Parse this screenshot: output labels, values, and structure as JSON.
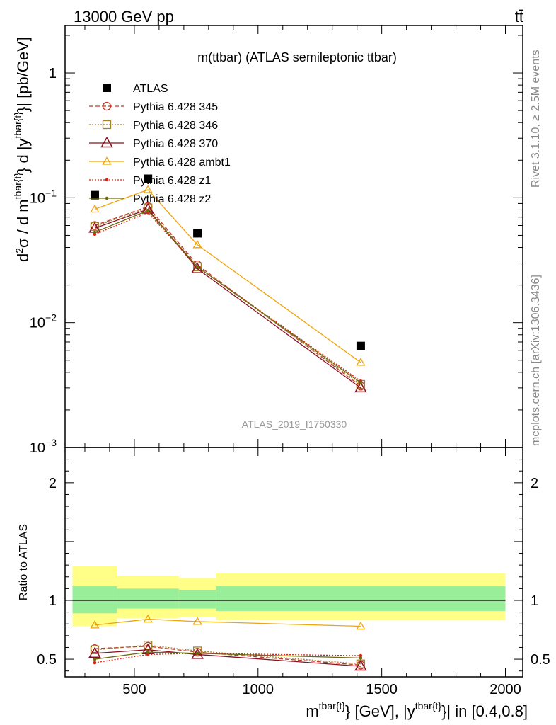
{
  "header": {
    "left": "13000 GeV pp",
    "right": "tt̄"
  },
  "side_labels": {
    "rivet": "Rivet 3.1.10, ≥ 2.5M events",
    "mcplots": "mcplots.cern.ch [arXiv:1306.3436]"
  },
  "chart_data": {
    "type": "line",
    "title": "m(ttbar) (ATLAS semileptonic ttbar)",
    "watermark": "ATLAS_2019_I1750330",
    "ylabel": "d²σ / d m^{tbar{t}} d |y^{tbar{t}}| [pb/GeV]",
    "ratio_ylabel": "Ratio to ATLAS",
    "xlabel": "m^{tbar{t}} [GeV], |y^{tbar{t}}| in [0.4,0.8]",
    "xlim": [
      220,
      2070
    ],
    "ylim_log": [
      0.001,
      2.4
    ],
    "ratio_ylim": [
      0.35,
      2.3
    ],
    "y_scale": "log",
    "x_ticks": [
      500,
      1000,
      1500,
      2000
    ],
    "x_tick_labels": [
      "500",
      "1000",
      "1500",
      "2000"
    ],
    "y_ticks": [
      1,
      0.1,
      0.01,
      0.001
    ],
    "y_tick_labels": [
      {
        "base": "1",
        "exp": ""
      },
      {
        "base": "10",
        "exp": "−1"
      },
      {
        "base": "10",
        "exp": "−2"
      },
      {
        "base": "10",
        "exp": "−3"
      }
    ],
    "ratio_ticks": [
      0.5,
      1,
      2
    ],
    "ratio_tick_labels": [
      "0.5",
      "1",
      "2"
    ],
    "data": {
      "name": "ATLAS",
      "color": "#000000",
      "x": [
        340,
        555,
        755,
        1415
      ],
      "y": [
        0.105,
        0.142,
        0.052,
        0.0065
      ]
    },
    "bands": [
      {
        "x0": 250,
        "x1": 430,
        "stat": [
          0.89,
          1.12
        ],
        "total": [
          0.78,
          1.29
        ]
      },
      {
        "x0": 430,
        "x1": 680,
        "stat": [
          0.93,
          1.1
        ],
        "total": [
          0.85,
          1.21
        ]
      },
      {
        "x0": 680,
        "x1": 830,
        "stat": [
          0.93,
          1.09
        ],
        "total": [
          0.86,
          1.19
        ]
      },
      {
        "x0": 830,
        "x1": 2000,
        "stat": [
          0.91,
          1.12
        ],
        "total": [
          0.83,
          1.23
        ]
      }
    ],
    "series": [
      {
        "name": "Pythia 6.428 345",
        "color": "#c0392b",
        "dash": "6,3",
        "marker": "circle",
        "x": [
          340,
          555,
          755,
          1415
        ],
        "y": [
          0.06,
          0.085,
          0.029,
          0.0031
        ],
        "ratio": [
          0.59,
          0.61,
          0.56,
          0.45
        ]
      },
      {
        "name": "Pythia 6.428 346",
        "color": "#a5802e",
        "dash": "2,2",
        "marker": "square",
        "x": [
          340,
          555,
          755,
          1415
        ],
        "y": [
          0.059,
          0.083,
          0.028,
          0.0032
        ],
        "ratio": [
          0.58,
          0.62,
          0.57,
          0.46
        ]
      },
      {
        "name": "Pythia 6.428 370",
        "color": "#8b1020",
        "dash": "",
        "marker": "triangle",
        "x": [
          340,
          555,
          755,
          1415
        ],
        "y": [
          0.057,
          0.081,
          0.027,
          0.003
        ],
        "ratio": [
          0.55,
          0.58,
          0.54,
          0.44
        ]
      },
      {
        "name": "Pythia 6.428 ambt1",
        "color": "#f0a30a",
        "dash": "",
        "marker": "triangle-small",
        "x": [
          340,
          555,
          755,
          1415
        ],
        "y": [
          0.081,
          0.116,
          0.042,
          0.0048
        ],
        "ratio": [
          0.79,
          0.84,
          0.82,
          0.78
        ]
      },
      {
        "name": "Pythia 6.428 z1",
        "color": "#e02010",
        "dash": "2,2",
        "marker": "dot",
        "x": [
          340,
          555,
          755,
          1415
        ],
        "y": [
          0.051,
          0.076,
          0.028,
          0.0034
        ],
        "ratio": [
          0.47,
          0.54,
          0.55,
          0.53
        ]
      },
      {
        "name": "Pythia 6.428 z2",
        "color": "#6b6b10",
        "dash": "",
        "marker": "dot",
        "x": [
          340,
          555,
          755,
          1415
        ],
        "y": [
          0.053,
          0.079,
          0.028,
          0.0033
        ],
        "ratio": [
          0.5,
          0.56,
          0.55,
          0.51
        ]
      }
    ]
  }
}
